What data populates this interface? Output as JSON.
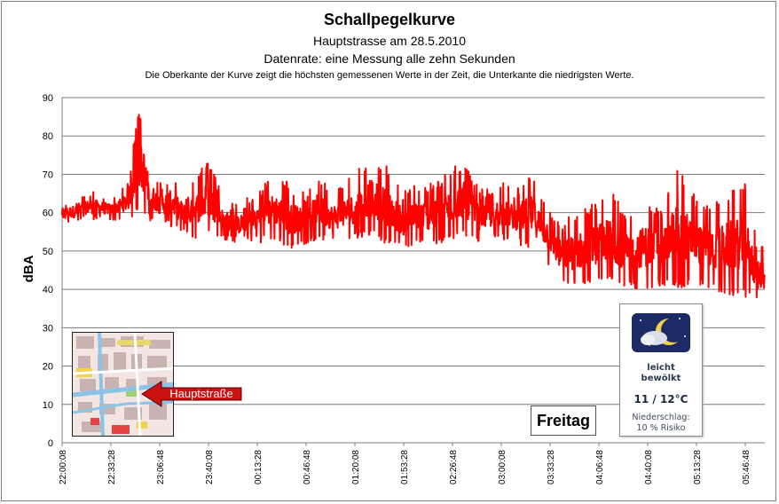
{
  "chart_data": {
    "type": "line",
    "title": "Schallpegelkurve",
    "subtitle": "Hauptstrasse am 28.5.2010",
    "subtitle2": "Datenrate: eine Messung alle zehn Sekunden",
    "note": "Die Oberkante der Kurve zeigt die höchsten  gemessenen Werte  in der Zeit, die Unterkante  die niedrigsten Werte.",
    "xlabel": "",
    "ylabel": "dBA",
    "ylim": [
      0,
      90
    ],
    "yticks": [
      0,
      10,
      20,
      30,
      40,
      50,
      60,
      70,
      80,
      90
    ],
    "xlim_seconds": [
      0,
      28800
    ],
    "grid": true,
    "series_color": "#ff0000",
    "x_ticks": [
      "22:00:08",
      "22:33:28",
      "23:06:48",
      "23:40:08",
      "00:13:28",
      "00:46:48",
      "01:20:08",
      "01:53:28",
      "02:26:48",
      "03:00:08",
      "03:33:28",
      "04:06:48",
      "04:40:08",
      "05:13:28",
      "05:46:48"
    ],
    "envelope": {
      "x": [
        "22:00:08",
        "22:10:00",
        "22:20:00",
        "22:33:28",
        "22:45:00",
        "22:52:00",
        "22:56:00",
        "23:00:00",
        "23:06:48",
        "23:15:00",
        "23:25:00",
        "23:35:00",
        "23:40:08",
        "23:50:00",
        "00:00:00",
        "00:13:28",
        "00:25:00",
        "00:35:00",
        "00:46:48",
        "00:55:00",
        "01:05:00",
        "01:20:08",
        "01:30:00",
        "01:40:00",
        "01:53:28",
        "02:05:00",
        "02:15:00",
        "02:26:48",
        "02:35:00",
        "02:45:00",
        "03:00:08",
        "03:10:00",
        "03:20:00",
        "03:33:28",
        "03:40:00",
        "03:50:00",
        "04:06:48",
        "04:15:00",
        "04:25:00",
        "04:40:08",
        "04:50:00",
        "05:00:00",
        "05:13:28",
        "05:25:00",
        "05:35:00",
        "05:46:48",
        "05:55:00"
      ],
      "upper": [
        63,
        64,
        66,
        64,
        68,
        86,
        84,
        72,
        68,
        70,
        65,
        72,
        74,
        64,
        62,
        66,
        70,
        68,
        65,
        70,
        66,
        70,
        75,
        73,
        66,
        68,
        68,
        72,
        74,
        66,
        68,
        66,
        71,
        62,
        58,
        60,
        64,
        66,
        60,
        64,
        60,
        73,
        64,
        62,
        66,
        68,
        52
      ],
      "lower": [
        57,
        57,
        58,
        58,
        58,
        60,
        59,
        58,
        57,
        56,
        54,
        53,
        54,
        53,
        52,
        52,
        53,
        50,
        52,
        53,
        52,
        53,
        54,
        52,
        50,
        52,
        51,
        53,
        54,
        52,
        53,
        52,
        50,
        46,
        41,
        40,
        41,
        42,
        40,
        40,
        41,
        40,
        41,
        40,
        38,
        38,
        36
      ]
    },
    "annotations": {
      "map_label": "Hauptstraße",
      "day_label": "Freitag",
      "weather": {
        "condition_line1": "leicht",
        "condition_line2": "bewölkt",
        "temperature": "11 / 12°C",
        "precip_line1": "Niederschlag:",
        "precip_line2": "10 % Risiko",
        "icon": "moon-cloud-icon"
      }
    }
  }
}
